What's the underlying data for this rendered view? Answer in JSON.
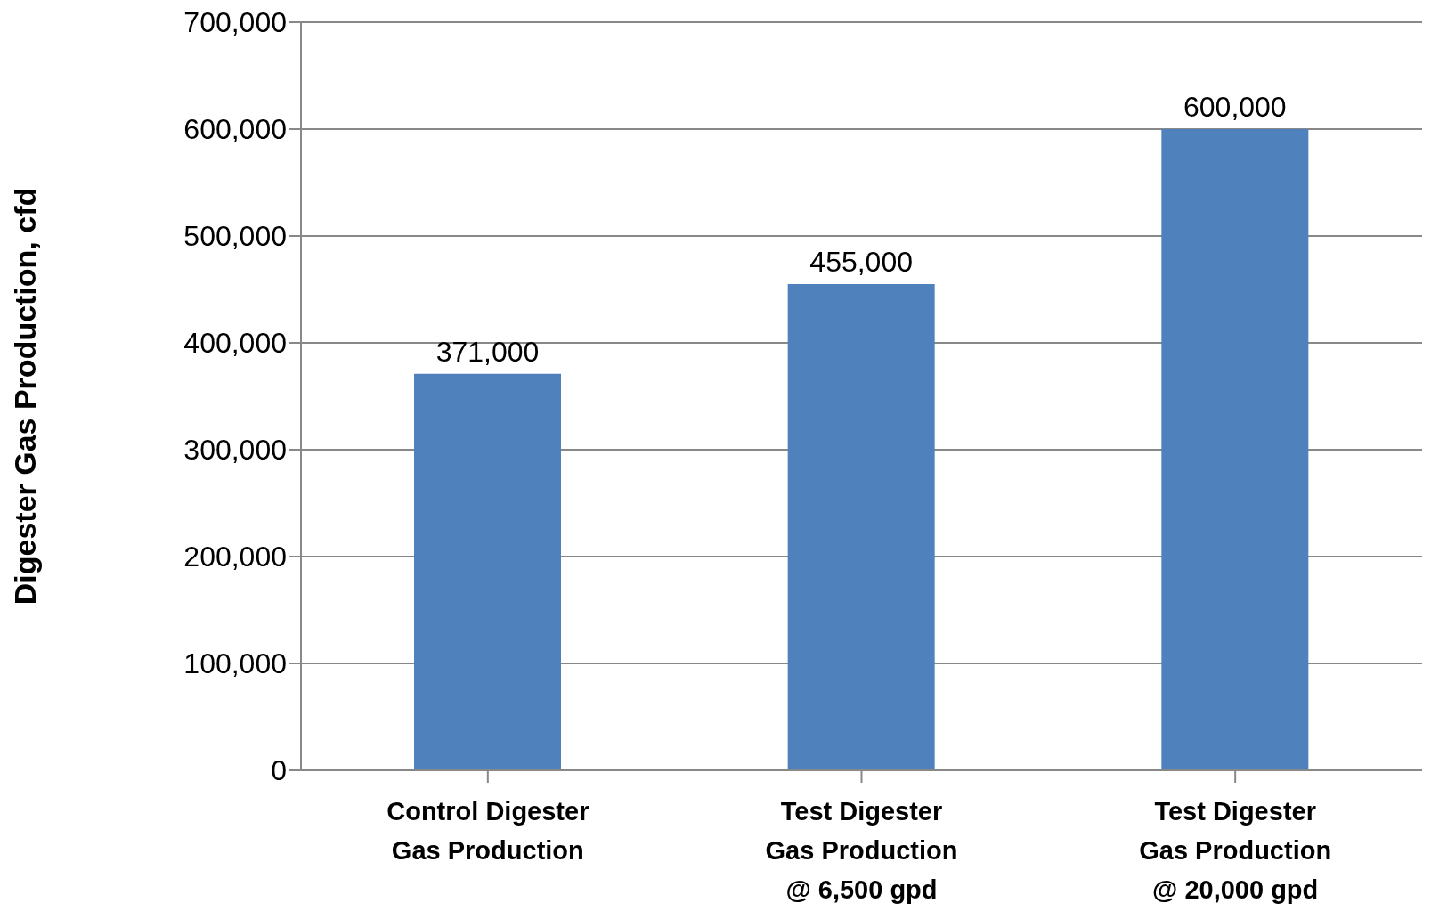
{
  "chart_data": {
    "type": "bar",
    "ylabel": "Digester Gas Production, cfd",
    "categories": [
      "Control Digester\nGas Production",
      "Test Digester\nGas Production\n@ 6,500 gpd",
      "Test Digester\nGas Production\n@ 20,000 gpd"
    ],
    "values": [
      371000,
      455000,
      600000
    ],
    "color": "#4f81bd",
    "value_labels": [
      "371,000",
      "455,000",
      "600,000"
    ],
    "ylim": [
      0,
      700000
    ],
    "yticks": [
      0,
      {
        "value": 100000,
        "label": "100,000"
      },
      {
        "value": 200000,
        "label": "200,000"
      },
      {
        "value": 300000,
        "label": "300,000"
      },
      {
        "value": 400000,
        "label": "400,000"
      },
      {
        "value": 500000,
        "label": "500,000"
      },
      {
        "value": 600000,
        "label": "600,000"
      },
      {
        "value": 700000,
        "label": "700,000"
      }
    ],
    "grid": "y",
    "legend": false
  }
}
